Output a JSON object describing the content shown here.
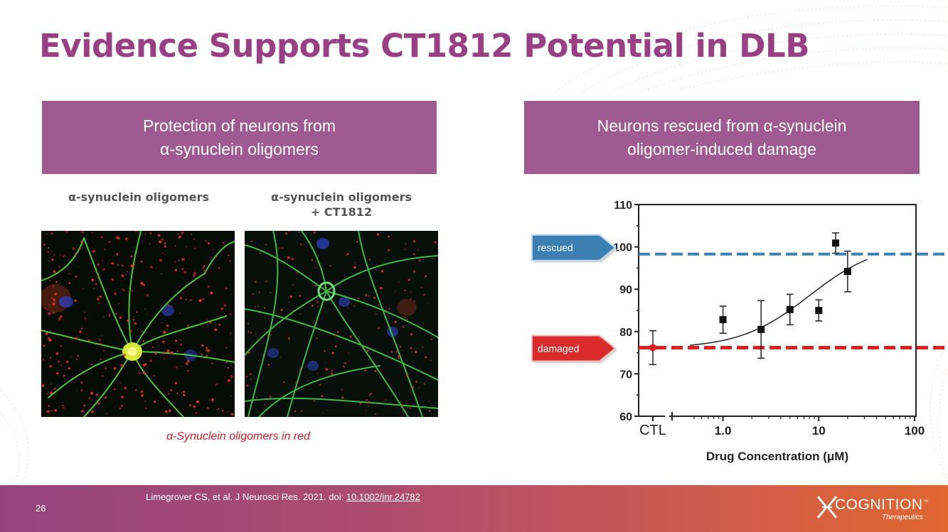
{
  "slide": {
    "title": "Evidence Supports CT1812 Potential in DLB",
    "page_number": "26"
  },
  "left_panel": {
    "header_line1": "Protection of neurons from",
    "header_line2": "α-synuclein oligomers",
    "caption_left": "α-synuclein oligomers",
    "caption_right_line1": "α-synuclein oligomers",
    "caption_right_line2": "+ CT1812",
    "image_note": "α-Synuclein oligomers in red"
  },
  "right_panel": {
    "header_line1": "Neurons rescued from α-synuclein",
    "header_line2": "oligomer-induced damage",
    "rescued_label": "rescued",
    "damaged_label": "damaged"
  },
  "footer": {
    "citation_text": "Limegrover CS, et al. J Neurosci Res. 2021. doi: ",
    "citation_doi": "10.1002/jnr.24782",
    "logo_name": "COGNITION",
    "logo_tm": "™",
    "logo_sub": "Therapeutics"
  },
  "colors": {
    "title": "#993f84",
    "panel_header": "#a05a92",
    "rescued_line": "#3a82b4",
    "damaged_line": "#e01f1f"
  },
  "chart_data": {
    "type": "scatter",
    "xlabel": "Drug Concentration (μM)",
    "ylabel": "",
    "x_scale": "log",
    "xlim": [
      0.4,
      100
    ],
    "ylim": [
      60,
      110
    ],
    "x_tick_labels": [
      "CTL",
      "1.0",
      "10",
      "100"
    ],
    "y_ticks": [
      60,
      70,
      80,
      90,
      100,
      110
    ],
    "control_point": {
      "label": "CTL",
      "y": 76.2,
      "err": 4
    },
    "points": [
      {
        "x": 1.0,
        "y": 82.8,
        "err": 3.2
      },
      {
        "x": 2.5,
        "y": 80.5,
        "err": 6.8
      },
      {
        "x": 5.0,
        "y": 85.2,
        "err": 3.6
      },
      {
        "x": 10,
        "y": 85.0,
        "err": 2.5
      },
      {
        "x": 15,
        "y": 100.9,
        "err": 2.4
      },
      {
        "x": 20,
        "y": 94.2,
        "err": 4.8
      }
    ],
    "reference_lines": [
      {
        "name": "rescued",
        "y": 98.3
      },
      {
        "name": "damaged",
        "y": 76.2
      }
    ],
    "fit_curve": "sigmoid"
  }
}
